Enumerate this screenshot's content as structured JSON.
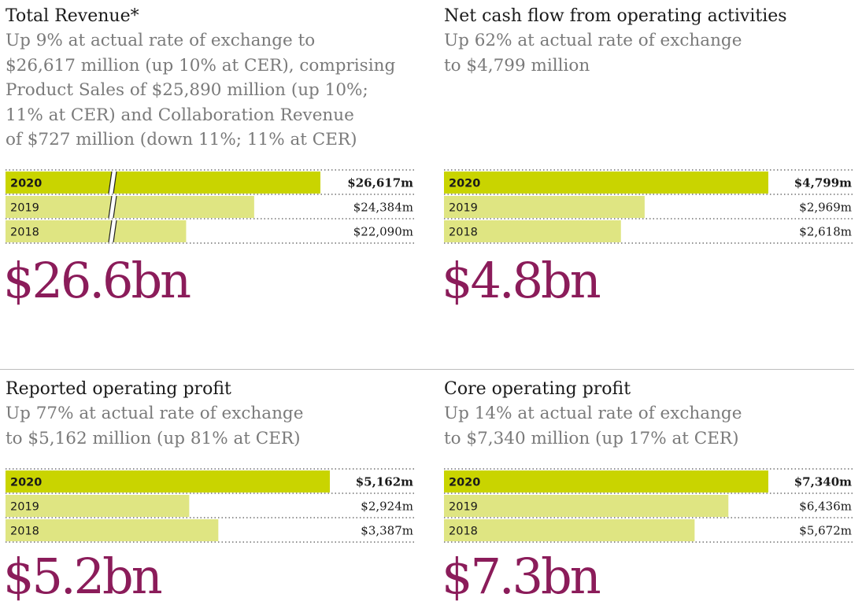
{
  "colors": {
    "bar_current": "#c9d400",
    "bar_prior": "#dfe582",
    "accent": "#8b1c5a",
    "dots": "#555555"
  },
  "chart_data": [
    {
      "type": "bar",
      "orientation": "horizontal",
      "title": "Total Revenue*",
      "subtitle": "Up 9% at actual rate of exchange to $26,617 million (up 10% at CER), comprising Product Sales of $25,890 million (up 10%; 11% at CER) and Collaboration Revenue of $727 million (down 11%; 11% at CER)",
      "categories": [
        "2020",
        "2019",
        "2018"
      ],
      "values": [
        26617,
        24384,
        22090
      ],
      "value_labels": [
        "$26,617m",
        "$24,384m",
        "$22,090m"
      ],
      "unit": "$m",
      "axis_break": true,
      "xlim": [
        0,
        26617
      ],
      "headline": "$26.6bn"
    },
    {
      "type": "bar",
      "orientation": "horizontal",
      "title": "Net cash flow from operating activities",
      "subtitle": "Up 62% at actual rate of exchange to $4,799 million",
      "categories": [
        "2020",
        "2019",
        "2018"
      ],
      "values": [
        4799,
        2969,
        2618
      ],
      "value_labels": [
        "$4,799m",
        "$2,969m",
        "$2,618m"
      ],
      "unit": "$m",
      "axis_break": false,
      "xlim": [
        0,
        4799
      ],
      "headline": "$4.8bn"
    },
    {
      "type": "bar",
      "orientation": "horizontal",
      "title": "Reported operating profit",
      "subtitle": "Up 77% at actual rate of exchange to $5,162 million (up 81% at CER)",
      "categories": [
        "2020",
        "2019",
        "2018"
      ],
      "values": [
        5162,
        2924,
        3387
      ],
      "value_labels": [
        "$5,162m",
        "$2,924m",
        "$3,387m"
      ],
      "unit": "$m",
      "axis_break": false,
      "xlim": [
        0,
        5162
      ],
      "headline": "$5.2bn"
    },
    {
      "type": "bar",
      "orientation": "horizontal",
      "title": "Core operating profit",
      "subtitle": "Up 14% at actual rate of exchange to $7,340 million (up 17% at CER)",
      "categories": [
        "2020",
        "2019",
        "2018"
      ],
      "values": [
        7340,
        6436,
        5672
      ],
      "value_labels": [
        "$7,340m",
        "$6,436m",
        "$5,672m"
      ],
      "unit": "$m",
      "axis_break": false,
      "xlim": [
        0,
        7340
      ],
      "headline": "$7.3bn"
    }
  ],
  "panels": [
    {
      "title": "Total Revenue*",
      "desc_lines": [
        "Up 9% at actual rate of exchange to",
        "$26,617 million (up 10% at CER), comprising",
        "Product Sales of $25,890 million (up 10%;",
        "11% at CER) and Collaboration Revenue",
        "of $727 million (down 11%; 11% at CER)"
      ],
      "headline": "$26.6bn"
    },
    {
      "title": "Net cash flow from operating activities",
      "desc_lines": [
        "Up 62% at actual rate of exchange",
        "to $4,799 million"
      ],
      "headline": "$4.8bn"
    },
    {
      "title": "Reported operating profit",
      "desc_lines": [
        "Up 77% at actual rate of exchange",
        "to $5,162 million (up 81% at CER)"
      ],
      "headline": "$5.2bn"
    },
    {
      "title": "Core operating profit",
      "desc_lines": [
        "Up 14% at actual rate of exchange",
        "to $7,340 million (up 17% at CER)"
      ],
      "headline": "$7.3bn"
    }
  ]
}
